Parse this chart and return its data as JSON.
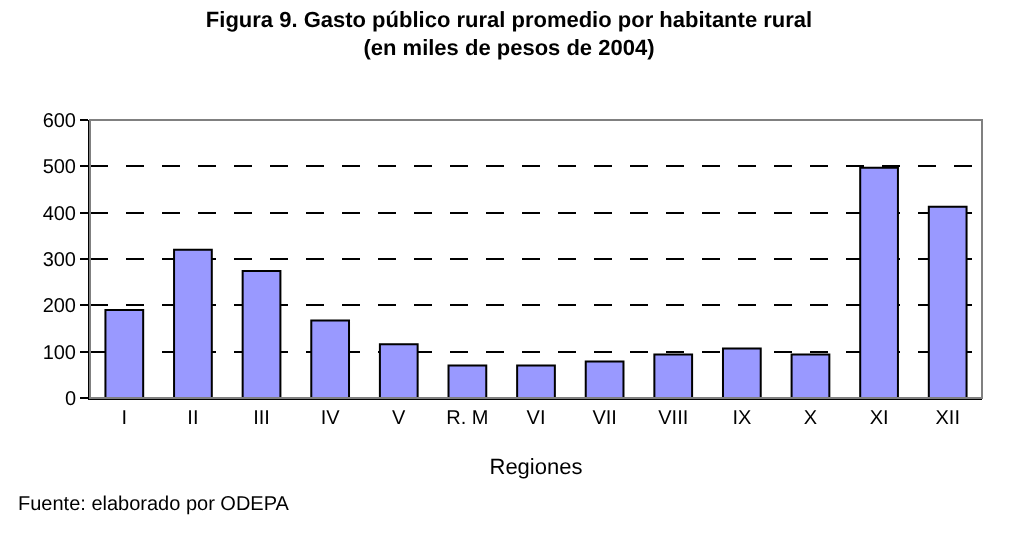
{
  "chart_data": {
    "type": "bar",
    "title": "Figura 9. Gasto público rural promedio por habitante rural\n(en miles de pesos de 2004)",
    "categories": [
      "I",
      "II",
      "III",
      "IV",
      "V",
      "R. M",
      "VI",
      "VII",
      "VIII",
      "IX",
      "X",
      "XI",
      "XII"
    ],
    "values": [
      190,
      320,
      274,
      167,
      116,
      70,
      70,
      79,
      94,
      107,
      94,
      497,
      413
    ],
    "color": "#9999ff",
    "xlabel": "Regiones",
    "ylim": [
      0,
      600
    ],
    "yticks": [
      0,
      100,
      200,
      300,
      400,
      500,
      600
    ],
    "grid": "y",
    "annotations": [
      "Fuente: elaborado por ODEPA"
    ]
  }
}
